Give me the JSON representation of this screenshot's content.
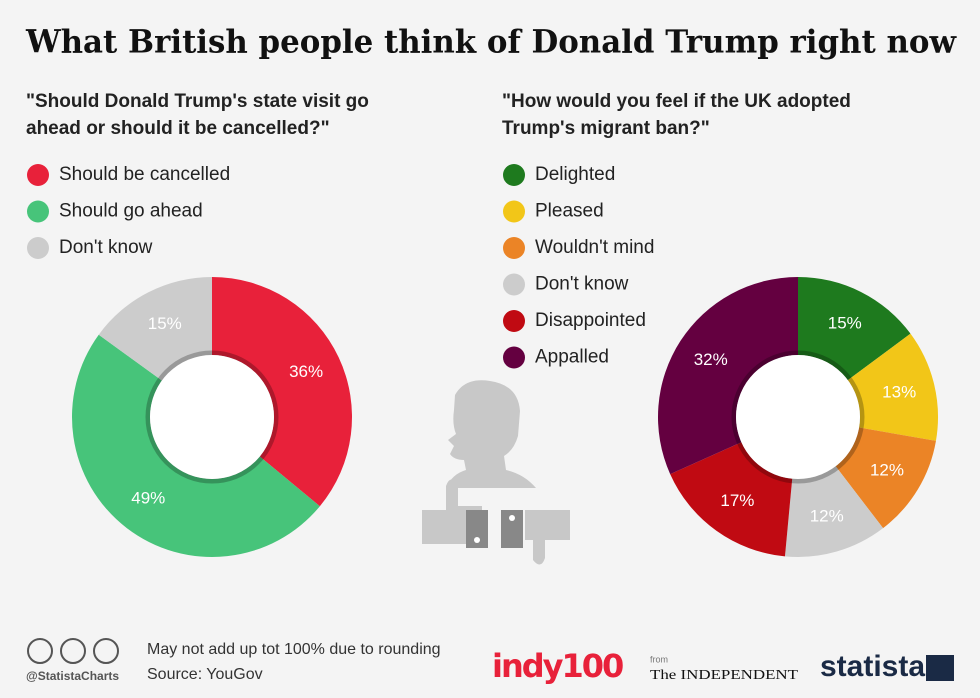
{
  "title": "What British people think of Donald Trump right now",
  "chart_data": [
    {
      "type": "donut",
      "title": [
        "\"Should Donald Trump's state visit go",
        "ahead or should it be cancelled?\""
      ],
      "categories": [
        "Should be cancelled",
        "Should go ahead",
        "Don't know"
      ],
      "values": [
        36,
        49,
        15
      ],
      "value_labels": [
        "36%",
        "49%",
        "15%"
      ],
      "colors": [
        "#e8213a",
        "#47c47a",
        "#cccccc"
      ]
    },
    {
      "type": "donut",
      "title": [
        "\"How would you feel if the UK adopted",
        "Trump's migrant ban?\""
      ],
      "categories": [
        "Delighted",
        "Pleased",
        "Wouldn't mind",
        "Don't know",
        "Disappointed",
        "Appalled"
      ],
      "values": [
        15,
        13,
        12,
        12,
        17,
        32
      ],
      "value_labels": [
        "15%",
        "13%",
        "12%",
        "12%",
        "17%",
        "32%"
      ],
      "colors": [
        "#1e7a1e",
        "#f2c618",
        "#eb8426",
        "#cccccc",
        "#c00a12",
        "#640040"
      ]
    }
  ],
  "footer": {
    "note": "May not add up tot 100% due to rounding",
    "source": "Source: YouGov",
    "handle": "@StatistaCharts",
    "logo_indy": "indy100",
    "from": "from",
    "logo_independent": "The INDEPENDENT",
    "logo_statista": "statista"
  }
}
